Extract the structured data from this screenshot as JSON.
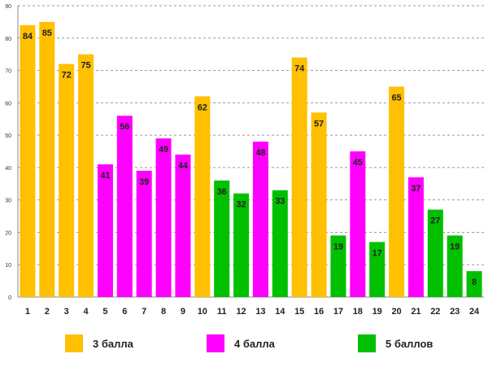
{
  "chart_data": {
    "type": "bar",
    "title": "",
    "xlabel": "",
    "ylabel": "",
    "ylim": [
      0,
      90
    ],
    "yticks": [
      "0",
      "10",
      "20",
      "30",
      "40",
      "50",
      "60",
      "70",
      "80",
      "90"
    ],
    "grid": "dashed-horizontal",
    "categories": [
      "1",
      "2",
      "3",
      "4",
      "5",
      "6",
      "7",
      "8",
      "9",
      "10",
      "11",
      "12",
      "13",
      "14",
      "15",
      "16",
      "17",
      "18",
      "19",
      "20",
      "21",
      "22",
      "23",
      "24"
    ],
    "values": [
      84,
      85,
      72,
      75,
      41,
      56,
      39,
      49,
      44,
      62,
      36,
      32,
      48,
      33,
      74,
      57,
      19,
      45,
      17,
      65,
      37,
      27,
      19,
      8
    ],
    "groups": [
      "g3",
      "g3",
      "g3",
      "g3",
      "g4",
      "g4",
      "g4",
      "g4",
      "g4",
      "g3",
      "g5",
      "g5",
      "g4",
      "g5",
      "g3",
      "g3",
      "g5",
      "g4",
      "g5",
      "g3",
      "g4",
      "g5",
      "g5",
      "g5"
    ],
    "legend": [
      {
        "key": "g3",
        "label": "3 балла",
        "color": "#FFC000"
      },
      {
        "key": "g4",
        "label": "4 балла",
        "color": "#FF00FF"
      },
      {
        "key": "g5",
        "label": "5 баллов",
        "color": "#00C000"
      }
    ]
  }
}
